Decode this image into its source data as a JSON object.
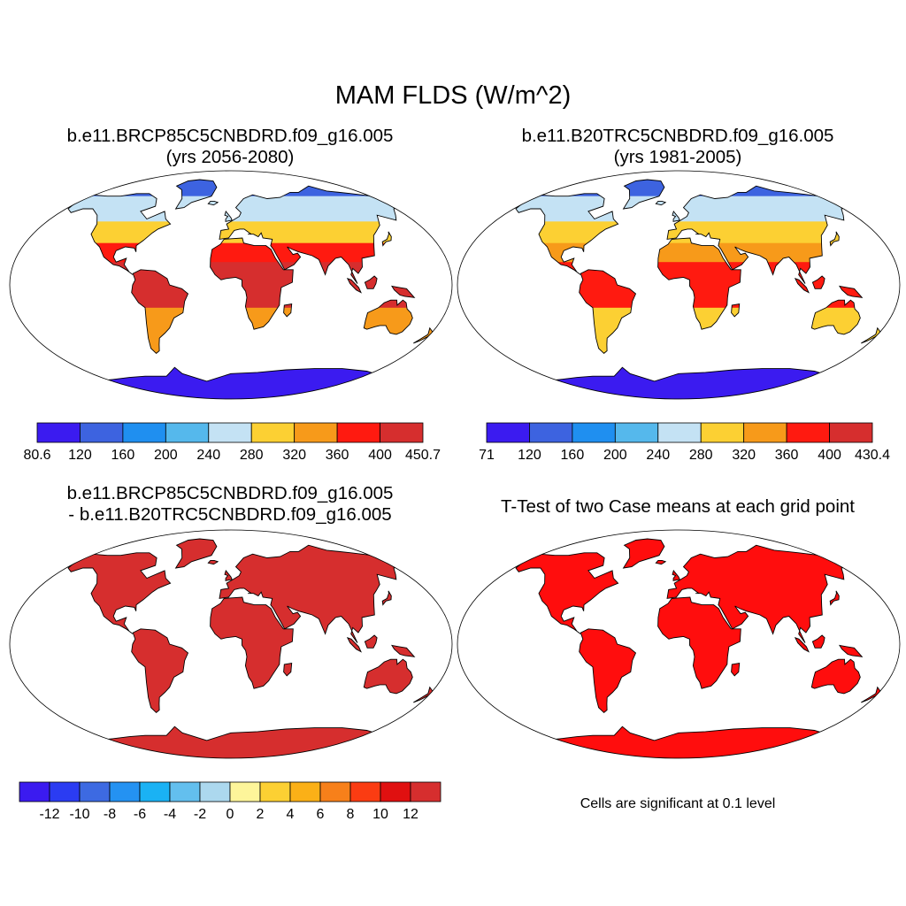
{
  "figure": {
    "title": "MAM FLDS (W/m^2)",
    "panels": [
      {
        "id": "tl",
        "title_line1": "b.e11.BRCP85C5CNBDRD.f09_g16.005",
        "title_line2": "(yrs 2056-2080)",
        "colorbar_labels": [
          "80.6",
          "120",
          "160",
          "200",
          "240",
          "280",
          "320",
          "360",
          "400",
          "450.7"
        ],
        "colorbar_colors": [
          "#3b1bf0",
          "#3d63e0",
          "#1f8ff0",
          "#55b8ec",
          "#c4e2f4",
          "#fcd033",
          "#f79a1a",
          "#ff1a10",
          "#d62e2e"
        ]
      },
      {
        "id": "tr",
        "title_line1": "b.e11.B20TRC5CNBDRD.f09_g16.005",
        "title_line2": "(yrs 1981-2005)",
        "colorbar_labels": [
          "71",
          "120",
          "160",
          "200",
          "240",
          "280",
          "320",
          "360",
          "400",
          "430.4"
        ],
        "colorbar_colors": [
          "#3b1bf0",
          "#3d63e0",
          "#1f8ff0",
          "#55b8ec",
          "#c4e2f4",
          "#fcd033",
          "#f79a1a",
          "#ff1a10",
          "#d62e2e"
        ]
      },
      {
        "id": "bl",
        "title_line1": "b.e11.BRCP85C5CNBDRD.f09_g16.005",
        "title_line2": "- b.e11.B20TRC5CNBDRD.f09_g16.005",
        "colorbar_labels": [
          "-12",
          "-10",
          "-8",
          "-6",
          "-4",
          "-2",
          "0",
          "2",
          "4",
          "6",
          "8",
          "10",
          "12"
        ],
        "colorbar_colors": [
          "#3b1bf0",
          "#2b3cf2",
          "#3d6ae2",
          "#2492f2",
          "#1ab2f4",
          "#63bfee",
          "#acd8ee",
          "#fdf59a",
          "#fcd033",
          "#fbb017",
          "#f7801a",
          "#fb3c12",
          "#e01010",
          "#d62e2e"
        ]
      },
      {
        "id": "br",
        "title_line1": "T-Test of two Case means at each grid point",
        "note": "Cells are significant at 0.1 level"
      }
    ],
    "land_colors": {
      "tl": {
        "arctic": "#3d63e0",
        "north": "#c4e2f4",
        "mid": "#fcd033",
        "subtrop": "#ff1a10",
        "tropics": "#d62e2e",
        "south": "#f79a1a",
        "antarctic": "#3b1bf0"
      },
      "tr": {
        "arctic": "#3d63e0",
        "north": "#c4e2f4",
        "mid": "#fcd033",
        "subtrop": "#f79a1a",
        "tropics": "#ff1a10",
        "south": "#fcd033",
        "antarctic": "#3b1bf0"
      },
      "bl": {
        "all": "#d62e2e"
      },
      "br": {
        "all": "#ff0d0d"
      }
    }
  }
}
